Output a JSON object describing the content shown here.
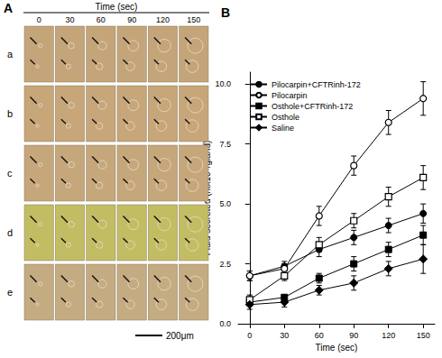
{
  "panel_a": {
    "label": "A",
    "header": "Time (sec)",
    "times": [
      0,
      30,
      60,
      90,
      120,
      150
    ],
    "rows": [
      "a",
      "b",
      "c",
      "d",
      "e"
    ],
    "scale_bar": "200μm"
  },
  "chart_data": {
    "type": "line",
    "title": "B",
    "x_label": "Time (sec)",
    "y_label": "Fluid secreted (nlx10⁸/gland)",
    "x": [
      0,
      30,
      60,
      90,
      120,
      150
    ],
    "xlim": [
      -10,
      160
    ],
    "xticks": [
      0,
      30,
      60,
      90,
      120,
      150
    ],
    "ylim": [
      0,
      10.5
    ],
    "yticks": [
      {
        "value": 0,
        "label": "0.0"
      },
      {
        "value": 2.5,
        "label": "2.5"
      },
      {
        "value": 5,
        "label": "5.0"
      },
      {
        "value": 7.5,
        "label": "7.5"
      },
      {
        "value": 10,
        "label": "10.0"
      }
    ],
    "grid": false,
    "legend": "upper left",
    "line_style": "solid",
    "series": [
      {
        "name": "Pilocarpin+CFTRinh-172",
        "color": "#000000",
        "marker": "circle",
        "values": [
          2.0,
          2.4,
          3.1,
          3.6,
          4.1,
          4.6
        ],
        "errors": [
          0.2,
          0.2,
          0.3,
          0.3,
          0.3,
          0.4
        ]
      },
      {
        "name": "Pilocarpin",
        "color": "#000000",
        "marker": "circle-open",
        "values": [
          2.0,
          2.3,
          4.5,
          6.6,
          8.4,
          9.4
        ],
        "errors": [
          0.2,
          0.2,
          0.4,
          0.4,
          0.5,
          0.7
        ]
      },
      {
        "name": "Osthole+CFTRinh-172",
        "color": "#000000",
        "marker": "square",
        "values": [
          0.9,
          1.1,
          1.9,
          2.5,
          3.1,
          3.7
        ],
        "errors": [
          0.1,
          0.1,
          0.2,
          0.3,
          0.3,
          0.4
        ]
      },
      {
        "name": "Osthole",
        "color": "#000000",
        "marker": "square-open",
        "values": [
          1.0,
          2.0,
          3.3,
          4.3,
          5.3,
          6.1
        ],
        "errors": [
          0.2,
          0.2,
          0.3,
          0.3,
          0.4,
          0.5
        ]
      },
      {
        "name": "Saline",
        "color": "#000000",
        "marker": "diamond",
        "values": [
          0.8,
          0.9,
          1.4,
          1.7,
          2.3,
          2.7
        ],
        "errors": [
          0.2,
          0.2,
          0.2,
          0.3,
          0.3,
          0.6
        ]
      }
    ]
  }
}
